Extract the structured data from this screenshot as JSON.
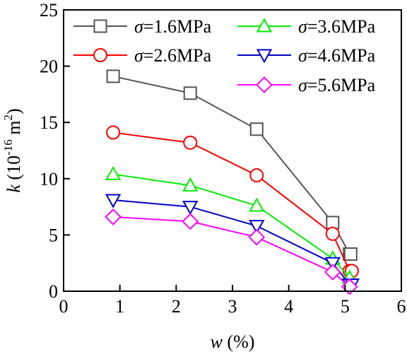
{
  "chart_data": {
    "type": "line",
    "xlabel": {
      "symbol": "w",
      "rest": " (%)"
    },
    "ylabel": {
      "symbol": "k",
      "rest": " (10",
      "exp": "-16",
      "unit": " m",
      "unit_exp": "2",
      "close": ")"
    },
    "xlim": [
      0,
      6
    ],
    "ylim": [
      0,
      25
    ],
    "xticks": [
      "0",
      "1",
      "2",
      "3",
      "4",
      "5",
      "6"
    ],
    "yticks": [
      "0",
      "5",
      "10",
      "15",
      "20",
      "25"
    ],
    "grid": false,
    "legend_placement": "top-right",
    "series": [
      {
        "name": "σ=1.6MPa",
        "sym": "σ",
        "rest": "=1.6MPa",
        "color": "#555555",
        "marker": "square",
        "x": [
          0.88,
          2.25,
          3.43,
          4.78,
          5.08,
          5.1
        ],
        "y": [
          19.1,
          17.6,
          14.4,
          6.1,
          3.3,
          3.3
        ]
      },
      {
        "name": "σ=2.6MPa",
        "sym": "σ",
        "rest": "=2.6MPa",
        "color": "#ff0000",
        "marker": "circle",
        "x": [
          0.88,
          2.25,
          3.43,
          4.78,
          5.08,
          5.12
        ],
        "y": [
          14.1,
          13.2,
          10.3,
          5.1,
          1.8,
          1.8
        ]
      },
      {
        "name": "σ=3.6MPa",
        "sym": "σ",
        "rest": "=3.6MPa",
        "color": "#00ee00",
        "marker": "triangle-up",
        "x": [
          0.88,
          2.25,
          3.43,
          4.78,
          5.08
        ],
        "y": [
          10.4,
          9.4,
          7.6,
          2.9,
          1.2
        ]
      },
      {
        "name": "σ=4.6MPa",
        "sym": "σ",
        "rest": "=4.6MPa",
        "color": "#0000cc",
        "marker": "triangle-down",
        "x": [
          0.88,
          2.25,
          3.43,
          4.78,
          5.08,
          5.12
        ],
        "y": [
          8.1,
          7.5,
          5.8,
          2.5,
          0.6,
          0.6
        ]
      },
      {
        "name": "σ=5.6MPa",
        "sym": "σ",
        "rest": "=5.6MPa",
        "color": "#ff00ff",
        "marker": "diamond",
        "x": [
          0.88,
          2.25,
          3.43,
          4.78,
          5.08
        ],
        "y": [
          6.6,
          6.2,
          4.8,
          1.7,
          0.4
        ]
      }
    ]
  }
}
